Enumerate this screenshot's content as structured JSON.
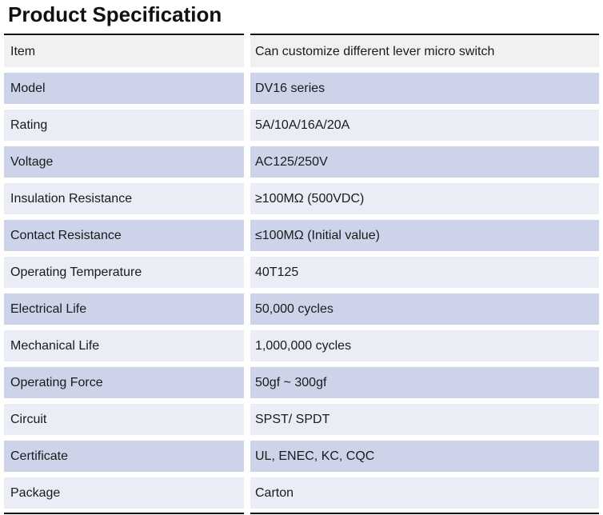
{
  "title": "Product Specification",
  "colors": {
    "header_row_bg": "#f1f1f2",
    "row_alt_dark": "#cdd3e9",
    "row_alt_light": "#eaecf6",
    "rule": "#000000",
    "text": "#1b1b1b"
  },
  "table": {
    "rows": [
      {
        "label": "Item",
        "value": "Can customize different lever micro switch"
      },
      {
        "label": "Model",
        "value": "DV16 series"
      },
      {
        "label": "Rating",
        "value": "5A/10A/16A/20A"
      },
      {
        "label": "Voltage",
        "value": "AC125/250V"
      },
      {
        "label": "Insulation Resistance",
        "value": "≥100MΩ (500VDC)"
      },
      {
        "label": "Contact Resistance",
        "value": "≤100MΩ (Initial value)"
      },
      {
        "label": "Operating Temperature",
        "value": "40T125"
      },
      {
        "label": "Electrical Life",
        "value": "50,000 cycles"
      },
      {
        "label": "Mechanical Life",
        "value": "1,000,000 cycles"
      },
      {
        "label": "Operating Force",
        "value": "50gf ~ 300gf"
      },
      {
        "label": "Circuit",
        "value": "SPST/ SPDT"
      },
      {
        "label": "Certificate",
        "value": "UL, ENEC, KC, CQC"
      },
      {
        "label": "Package",
        "value": "Carton"
      }
    ]
  }
}
